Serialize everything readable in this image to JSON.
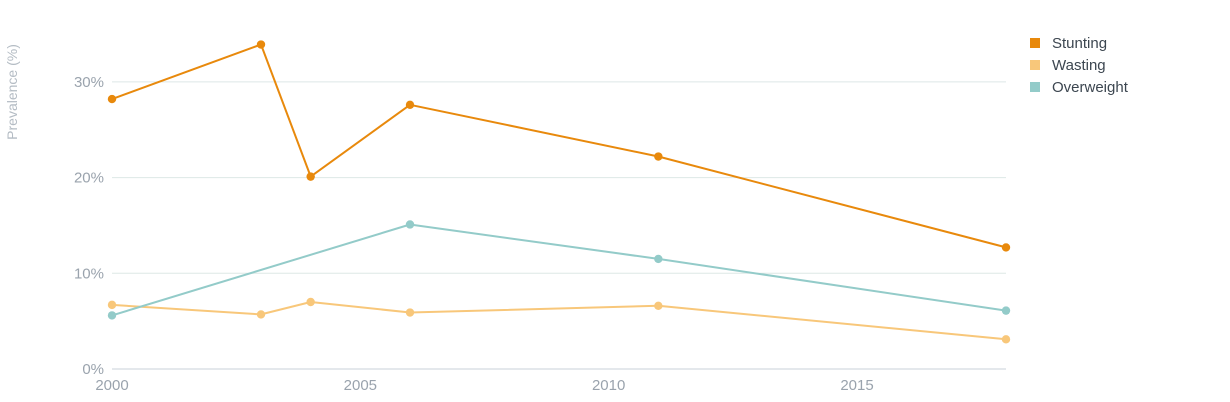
{
  "chart_data": {
    "type": "line",
    "title": "",
    "xlabel": "",
    "ylabel": "Prevalence (%)",
    "xlim": [
      2000,
      2018
    ],
    "ylim": [
      0,
      35
    ],
    "x_ticks": [
      2000,
      2005,
      2010,
      2015
    ],
    "y_ticks": [
      0,
      10,
      20,
      30
    ],
    "y_tick_labels": [
      "0%",
      "10%",
      "20%",
      "30%"
    ],
    "grid": true,
    "legend_position": "top-right",
    "series": [
      {
        "name": "Stunting",
        "color": "#E8890C",
        "points": [
          [
            2000,
            28.2
          ],
          [
            2003,
            33.9
          ],
          [
            2004,
            20.1
          ],
          [
            2006,
            27.6
          ],
          [
            2011,
            22.2
          ],
          [
            2018,
            12.7
          ]
        ]
      },
      {
        "name": "Wasting",
        "color": "#F8C77A",
        "points": [
          [
            2000,
            6.7
          ],
          [
            2003,
            5.7
          ],
          [
            2004,
            7.0
          ],
          [
            2006,
            5.9
          ],
          [
            2011,
            6.6
          ],
          [
            2018,
            3.1
          ]
        ]
      },
      {
        "name": "Overweight",
        "color": "#93CBC9",
        "points": [
          [
            2000,
            5.6
          ],
          [
            2006,
            15.1
          ],
          [
            2011,
            11.5
          ],
          [
            2018,
            6.1
          ]
        ]
      }
    ]
  }
}
